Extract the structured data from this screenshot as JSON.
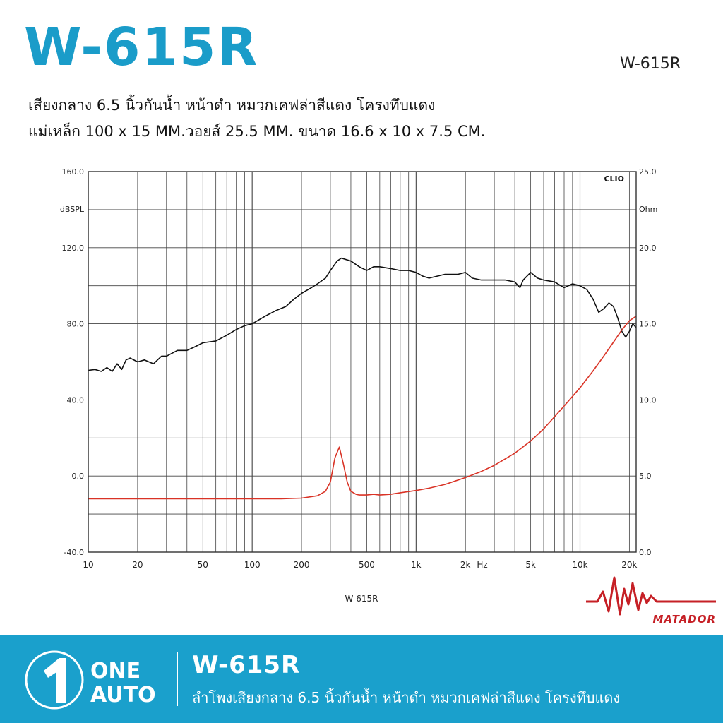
{
  "header": {
    "title": "W-615R",
    "model_tag": "W-615R",
    "desc_line1": "เสียงกลาง 6.5 นิ้วกันน้ำ หน้าดำ หมวกเคฟล่าสีแดง โครงทึบแดง",
    "desc_line2": "แม่เหล็ก 100 x 15 MM.วอยส์ 25.5 MM. ขนาด 16.6 x 10 x 7.5 CM."
  },
  "chart_data": {
    "type": "line",
    "title": "",
    "caption": "W-615R",
    "watermark": "CLIO",
    "xlabel": "Hz",
    "ylabel_left": "dBSPL",
    "ylabel_right": "Ohm",
    "xscale": "log",
    "xlim": [
      10,
      22000
    ],
    "ylim_left": [
      -40,
      160
    ],
    "ylim_right": [
      0,
      25
    ],
    "grid": true,
    "x_tick_labels": [
      {
        "value": 10,
        "label": "10"
      },
      {
        "value": 20,
        "label": "20"
      },
      {
        "value": 50,
        "label": "50"
      },
      {
        "value": 100,
        "label": "100"
      },
      {
        "value": 200,
        "label": "200"
      },
      {
        "value": 500,
        "label": "500"
      },
      {
        "value": 1000,
        "label": "1k"
      },
      {
        "value": 2000,
        "label": "2k"
      },
      {
        "value": 5000,
        "label": "5k"
      },
      {
        "value": 10000,
        "label": "10k"
      },
      {
        "value": 20000,
        "label": "20k"
      }
    ],
    "y_left_tick_labels": [
      "160.0",
      "120.0",
      "80.0",
      "40.0",
      "0.0",
      "-40.0"
    ],
    "y_right_tick_labels": [
      "25.0",
      "20.0",
      "15.0",
      "10.0",
      "5.0",
      "0.0"
    ],
    "series": [
      {
        "axis": "left",
        "color": "#111111",
        "x": [
          10,
          11,
          12,
          13,
          14,
          15,
          16,
          17,
          18,
          20,
          22,
          25,
          28,
          30,
          35,
          40,
          45,
          50,
          60,
          70,
          80,
          90,
          100,
          120,
          140,
          160,
          180,
          200,
          230,
          250,
          280,
          300,
          330,
          350,
          400,
          450,
          500,
          550,
          600,
          700,
          800,
          900,
          1000,
          1100,
          1200,
          1500,
          1800,
          2000,
          2200,
          2500,
          3000,
          3500,
          4000,
          4300,
          4500,
          5000,
          5500,
          6000,
          7000,
          8000,
          9000,
          10000,
          11000,
          12000,
          13000,
          14000,
          15000,
          16000,
          17000,
          18000,
          19000,
          20000,
          21000,
          22000
        ],
        "values": [
          55.5,
          56,
          55,
          57,
          55,
          59,
          56,
          61,
          62,
          60,
          61,
          59,
          63,
          63,
          66,
          66,
          68,
          70,
          71,
          74,
          77,
          79,
          80,
          84,
          87,
          89,
          93,
          96,
          99,
          101,
          104,
          108,
          113,
          114.5,
          113,
          110,
          108,
          110,
          110,
          109,
          108,
          108,
          107,
          105,
          104,
          106,
          106,
          107,
          104,
          103,
          103,
          103,
          102,
          99,
          103,
          107,
          104,
          103,
          102,
          99,
          101,
          100,
          98,
          93,
          86,
          88,
          91,
          89,
          83,
          76,
          73,
          76,
          80,
          78
        ]
      },
      {
        "axis": "right",
        "color": "#d93326",
        "x": [
          10,
          20,
          50,
          100,
          150,
          200,
          250,
          280,
          300,
          320,
          340,
          360,
          380,
          400,
          430,
          450,
          500,
          550,
          600,
          700,
          800,
          1000,
          1200,
          1500,
          2000,
          2500,
          3000,
          4000,
          5000,
          6000,
          7000,
          8000,
          10000,
          12000,
          14000,
          16000,
          18000,
          20000,
          22000
        ],
        "values": [
          3.5,
          3.5,
          3.5,
          3.5,
          3.5,
          3.55,
          3.7,
          4.0,
          4.6,
          6.2,
          6.9,
          5.8,
          4.6,
          4.0,
          3.8,
          3.75,
          3.75,
          3.8,
          3.75,
          3.8,
          3.9,
          4.05,
          4.2,
          4.45,
          4.9,
          5.3,
          5.7,
          6.5,
          7.3,
          8.1,
          8.9,
          9.6,
          10.8,
          11.9,
          12.9,
          13.8,
          14.6,
          15.2,
          15.5
        ]
      }
    ]
  },
  "brand": {
    "name": "MATADOR"
  },
  "footer": {
    "logo_line1": "ONE",
    "logo_line2": "AUTO",
    "title": "W-615R",
    "description": "ลำโพงเสียงกลาง 6.5 นิ้วกันน้ำ หน้าดำ หมวกเคฟล่าสีแดง โครงทึบแดง"
  }
}
